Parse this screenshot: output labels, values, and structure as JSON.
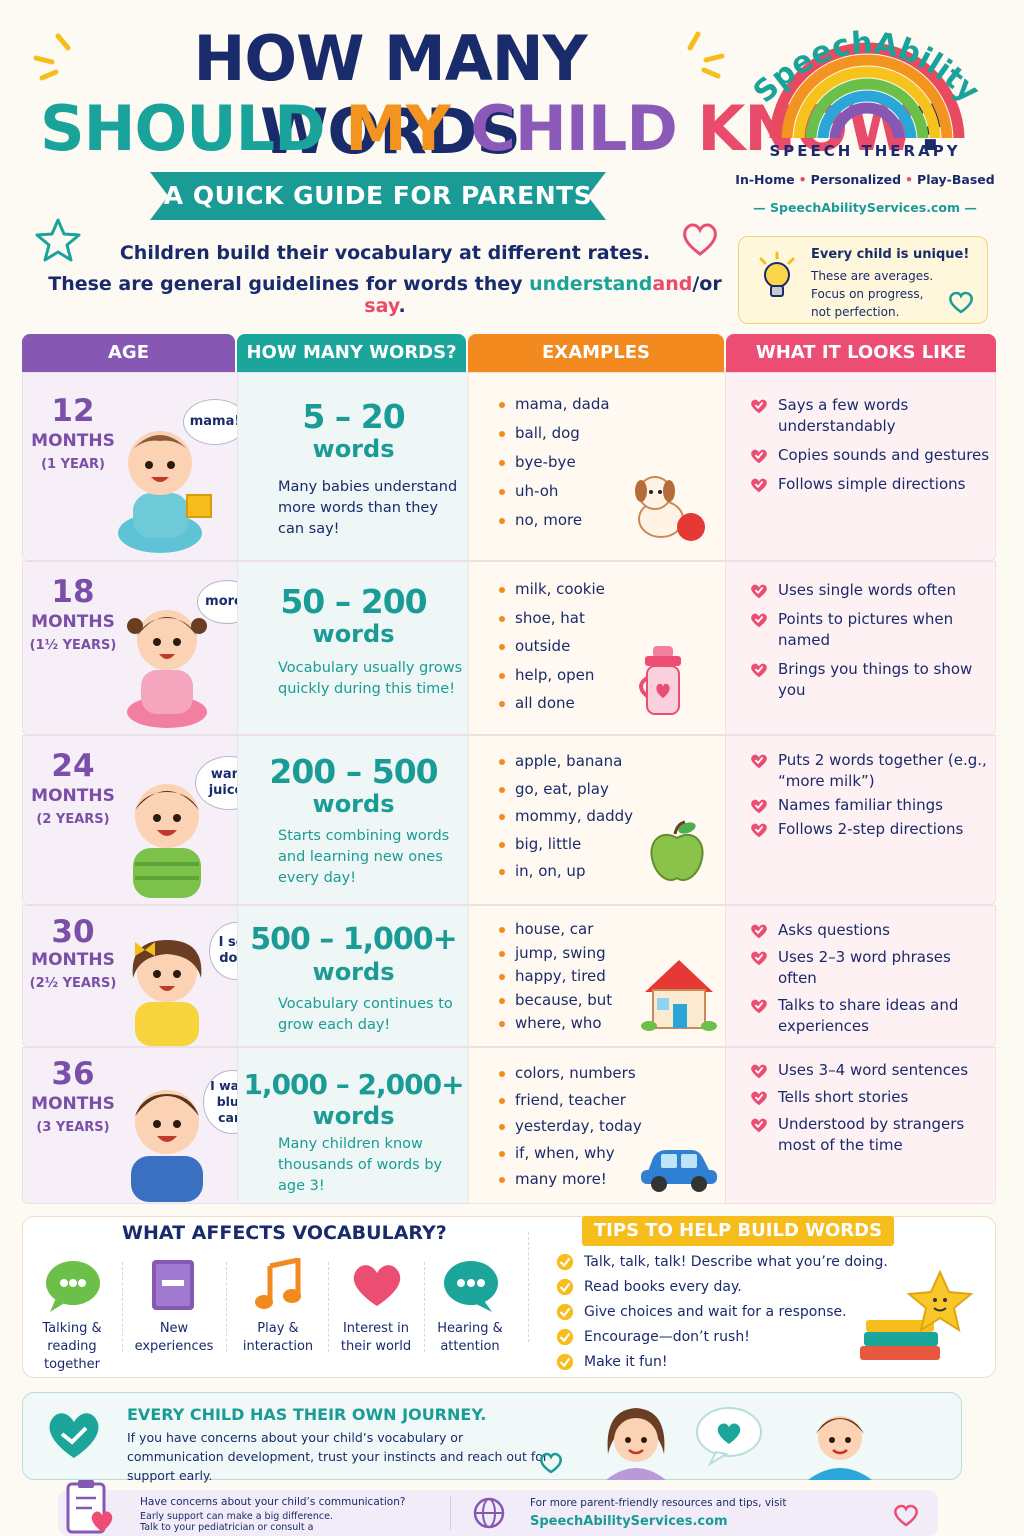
{
  "header": {
    "title_line1": "HOW MANY WORDS",
    "title_line2": {
      "w1": "SHOULD",
      "w2": "MY",
      "w3": "CHILD",
      "w4": "KNOW",
      "w5": "?"
    },
    "subtitle": "A QUICK GUIDE FOR PARENTS",
    "intro_line1": "Children build their vocabulary at different rates.",
    "intro_line2_prefix": "These are general guidelines for words they",
    "intro_understand": "understand",
    "intro_and": "and",
    "intro_or": "/or",
    "intro_say": "say",
    "intro_period": "."
  },
  "brand": {
    "name": "SpeechAbility",
    "subtitle": "SPEECH THERAPY",
    "tag1": "In-Home",
    "tag2": "Personalized",
    "tag3": "Play-Based",
    "url": "SpeechAbilityServices.com"
  },
  "tipbox": {
    "line1": "Every child is unique!",
    "line2": "These are averages.",
    "line3": "Focus on progress,",
    "line4": "not perfection."
  },
  "table": {
    "headers": [
      "AGE",
      "HOW MANY WORDS?",
      "EXAMPLES",
      "WHAT IT LOOKS LIKE"
    ],
    "rows": [
      {
        "age": "12",
        "months": "MONTHS",
        "years": "(1 YEAR)",
        "bubble": "mama!",
        "range": "5 – 20",
        "unit": "words",
        "note": "Many babies understand more words than they can say!",
        "examples": [
          "mama, dada",
          "ball, dog",
          "bye-bye",
          "uh-oh",
          "no, more"
        ],
        "looks": [
          "Says a few words understandably",
          "Copies sounds and gestures",
          "Follows simple directions"
        ]
      },
      {
        "age": "18",
        "months": "MONTHS",
        "years": "(1½ YEARS)",
        "bubble": "more!",
        "range": "50 – 200",
        "unit": "words",
        "note": "Vocabulary usually grows quickly during this time!",
        "examples": [
          "milk, cookie",
          "shoe, hat",
          "outside",
          "help, open",
          "all done"
        ],
        "looks": [
          "Uses single words often",
          "Points to pictures when named",
          "Brings you things to show you"
        ]
      },
      {
        "age": "24",
        "months": "MONTHS",
        "years": "(2 YEARS)",
        "bubble": "want juice!",
        "range": "200 – 500",
        "unit": "words",
        "note": "Starts combining words and learning new ones every day!",
        "examples": [
          "apple, banana",
          "go, eat, play",
          "mommy, daddy",
          "big, little",
          "in, on, up"
        ],
        "looks": [
          "Puts 2 words together (e.g., “more milk”)",
          "Names familiar things",
          "Follows 2-step directions"
        ]
      },
      {
        "age": "30",
        "months": "MONTHS",
        "years": "(2½ YEARS)",
        "bubble": "I see dog!",
        "range": "500 – 1,000+",
        "unit": "words",
        "note": "Vocabulary continues to grow each day!",
        "examples": [
          "house, car",
          "jump, swing",
          "happy, tired",
          "because, but",
          "where, who"
        ],
        "looks": [
          "Asks questions",
          "Uses 2–3 word phrases often",
          "Talks to share ideas and experiences"
        ]
      },
      {
        "age": "36",
        "months": "MONTHS",
        "years": "(3 YEARS)",
        "bubble": "I want blue car!",
        "range": "1,000 – 2,000+",
        "unit": "words",
        "note": "Many children know thousands of words by age 3!",
        "examples": [
          "colors, numbers",
          "friend, teacher",
          "yesterday, today",
          "if, when, why",
          "many more!"
        ],
        "looks": [
          "Uses 3–4 word sentences",
          "Tells short stories",
          "Understood by strangers most of the time"
        ]
      }
    ]
  },
  "affects": {
    "title": "WHAT AFFECTS VOCABULARY?",
    "items": [
      {
        "label": "Talking & reading together",
        "icon": "chat-bubble-icon"
      },
      {
        "label": "New experiences",
        "icon": "book-icon"
      },
      {
        "label": "Play & interaction",
        "icon": "music-note-icon"
      },
      {
        "label": "Interest in their world",
        "icon": "heart-icon"
      },
      {
        "label": "Hearing & attention",
        "icon": "speech-dots-icon"
      }
    ]
  },
  "tips": {
    "title": "TIPS TO HELP BUILD WORDS",
    "items": [
      "Talk, talk, talk! Describe what you’re doing.",
      "Read books every day.",
      "Give choices and wait for a response.",
      "Encourage—don’t rush!",
      "Make it fun!"
    ]
  },
  "journey": {
    "title": "EVERY CHILD HAS THEIR OWN JOURNEY.",
    "text": "If you have concerns about your child’s vocabulary or communication development, trust your instincts and reach out for support early."
  },
  "footer": {
    "left_line1": "Have concerns about your child’s communication?",
    "left_line2": "Early support can make a big difference.",
    "left_line3": "Talk to your pediatrician or consult a",
    "right_line1": "For more parent-friendly resources and tips, visit",
    "right_url": "SpeechAbilityServices.com"
  },
  "colors": {
    "navy": "#1a2b6b",
    "teal": "#1b9b96",
    "orange": "#f28a20",
    "purple": "#8658b3",
    "pink": "#ec4e73",
    "yellow": "#f6bd1c"
  }
}
